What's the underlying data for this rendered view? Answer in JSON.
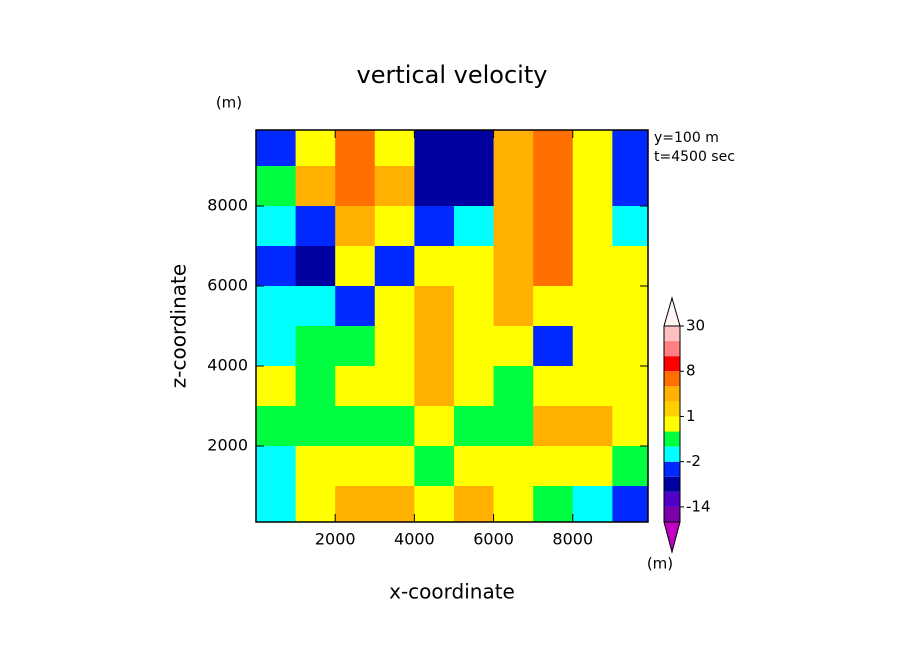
{
  "chart_data": {
    "type": "contour",
    "title": "vertical velocity",
    "y_unit": "(m)",
    "annotations": [
      "y=100 m",
      "t=4500 sec"
    ],
    "xlabel": "x-coordinate",
    "ylabel": "z-coordinate",
    "x": [
      500,
      1500,
      2500,
      3500,
      4500,
      5500,
      6500,
      7500,
      8500,
      9500
    ],
    "z": [
      9500,
      8500,
      7500,
      6500,
      5500,
      4500,
      3500,
      2500,
      1500,
      500
    ],
    "values": [
      [
        -3,
        0.5,
        5,
        0.5,
        -6,
        -6,
        2,
        5,
        0.5,
        -3
      ],
      [
        -0.5,
        2,
        5,
        2,
        -6,
        -6,
        2,
        5,
        0.5,
        -3
      ],
      [
        -1.5,
        -3,
        2,
        0.5,
        -3,
        -1.5,
        2,
        5,
        0.5,
        -1.5
      ],
      [
        -3,
        -6,
        0.5,
        -3,
        0.5,
        0.5,
        2,
        5,
        0.5,
        0.5
      ],
      [
        -1.5,
        -1.5,
        -3,
        0.5,
        2,
        0.5,
        2,
        0.5,
        0.5,
        0.5
      ],
      [
        -1.5,
        -0.5,
        -0.5,
        0.5,
        2,
        0.5,
        0.5,
        -3,
        0.5,
        0.5
      ],
      [
        0.5,
        -0.5,
        0.5,
        0.5,
        2,
        0.5,
        -0.5,
        0.5,
        0.5,
        0.5
      ],
      [
        -0.5,
        -0.5,
        -0.5,
        -0.5,
        0.5,
        -0.5,
        -0.5,
        2,
        2,
        0.5
      ],
      [
        -1.5,
        0.5,
        0.5,
        0.5,
        -0.5,
        0.5,
        0.5,
        0.5,
        0.5,
        -0.5
      ],
      [
        -1.5,
        0.5,
        2,
        2,
        0.5,
        2,
        0.5,
        -0.5,
        -1.5,
        -3
      ]
    ],
    "xlim": [
      0,
      9900
    ],
    "ylim": [
      100,
      9900
    ],
    "xticks": [
      2000,
      4000,
      6000,
      8000
    ],
    "yticks": [
      2000,
      4000,
      6000,
      8000
    ],
    "colorbar": {
      "levels": [
        -20,
        -14,
        -8,
        -4,
        -2,
        -1,
        0,
        1,
        2,
        4,
        8,
        15,
        22,
        30
      ],
      "colors": [
        "#7a00a8",
        "#5000c8",
        "#0000a0",
        "#0028ff",
        "#00ffff",
        "#00ff40",
        "#ffff00",
        "#ffd000",
        "#ffb000",
        "#ff7000",
        "#ff0000",
        "#ff8080",
        "#ffc0c0"
      ],
      "under_color": "#c000c0",
      "over_color": "#fff4f4",
      "ticks": [
        30,
        8,
        1,
        -2,
        -14
      ],
      "unit": "(m)"
    }
  }
}
